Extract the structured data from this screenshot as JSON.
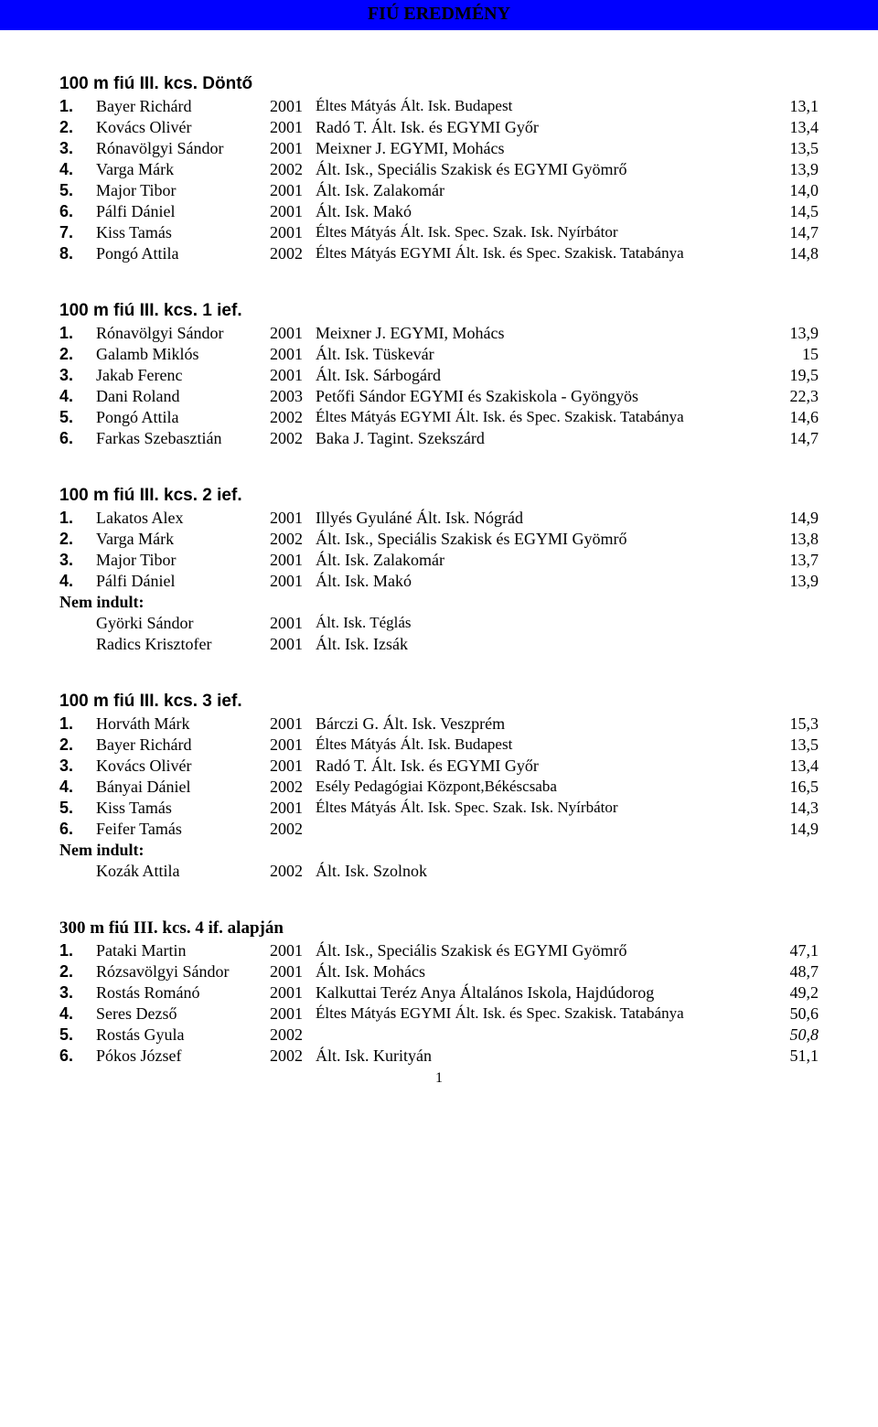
{
  "banner": "FIÚ EREDMÉNY",
  "pageNumber": "1",
  "sections": [
    {
      "title": "100 m fiú III. kcs.  Döntő",
      "rows": [
        {
          "rank": "1.",
          "name": "Bayer Richárd",
          "year": "2001",
          "inst": "Éltes Mátyás Ált. Isk. Budapest",
          "result": "13,1"
        },
        {
          "rank": "2.",
          "name": "Kovács Olivér",
          "year": "2001",
          "inst": "Radó T. Ált. Isk. és EGYMI Győr",
          "result": "13,4"
        },
        {
          "rank": "3.",
          "name": "Rónavölgyi Sándor",
          "year": "2001",
          "inst": "Meixner J. EGYMI, Mohács",
          "result": "13,5"
        },
        {
          "rank": "4.",
          "name": "Varga Márk",
          "year": "2002",
          "inst": "Ált. Isk., Speciális Szakisk és EGYMI Gyömrő",
          "result": "13,9"
        },
        {
          "rank": "5.",
          "name": "Major Tibor",
          "year": "2001",
          "inst": "Ált. Isk. Zalakomár",
          "result": "14,0"
        },
        {
          "rank": "6.",
          "name": "Pálfi Dániel",
          "year": "2001",
          "inst": "Ált. Isk. Makó",
          "result": "14,5"
        },
        {
          "rank": "7.",
          "name": "Kiss Tamás",
          "year": "2001",
          "inst": "Éltes Mátyás Ált. Isk. Spec. Szak. Isk. Nyírbátor",
          "result": "14,7"
        },
        {
          "rank": "8.",
          "name": "Pongó Attila",
          "year": "2002",
          "inst": "Éltes Mátyás EGYMI Ált. Isk. és Spec. Szakisk. Tatabánya",
          "result": "14,8"
        }
      ]
    },
    {
      "title": "100 m fiú  III. kcs. 1 ief.",
      "rows": [
        {
          "rank": "1.",
          "name": "Rónavölgyi Sándor",
          "year": "2001",
          "inst": "Meixner J. EGYMI, Mohács",
          "result": "13,9"
        },
        {
          "rank": "2.",
          "name": "Galamb Miklós",
          "year": "2001",
          "inst": "Ált. Isk. Tüskevár",
          "result": "15"
        },
        {
          "rank": "3.",
          "name": "Jakab Ferenc",
          "year": "2001",
          "inst": "Ált. Isk. Sárbogárd",
          "result": "19,5"
        },
        {
          "rank": "4.",
          "name": "Dani Roland",
          "year": "2003",
          "inst": "Petőfi Sándor EGYMI és Szakiskola - Gyöngyös",
          "result": "22,3"
        },
        {
          "rank": "5.",
          "name": "Pongó Attila",
          "year": "2002",
          "inst": "Éltes Mátyás EGYMI Ált. Isk. és Spec. Szakisk. Tatabánya",
          "result": "14,6"
        },
        {
          "rank": "6.",
          "name": "Farkas Szebasztián",
          "year": "2002",
          "inst": "Baka J. Tagint. Szekszárd",
          "result": "14,7"
        }
      ]
    },
    {
      "title": "100 m fiú III. kcs. 2 ief.",
      "rows": [
        {
          "rank": "1.",
          "name": "Lakatos Alex",
          "year": "2001",
          "inst": "Illyés Gyuláné Ált. Isk. Nógrád",
          "result": "14,9"
        },
        {
          "rank": "2.",
          "name": "Varga Márk",
          "year": "2002",
          "inst": "Ált. Isk., Speciális Szakisk és EGYMI Gyömrő",
          "result": "13,8"
        },
        {
          "rank": "3.",
          "name": "Major Tibor",
          "year": "2001",
          "inst": "Ált. Isk. Zalakomár",
          "result": "13,7"
        },
        {
          "rank": "4.",
          "name": "Pálfi Dániel",
          "year": "2001",
          "inst": "Ált. Isk. Makó",
          "result": "13,9"
        }
      ],
      "notStartedLabel": "Nem indult:",
      "notStarted": [
        {
          "name": "Györki Sándor",
          "year": "2001",
          "inst": "Ált. Isk. Téglás"
        },
        {
          "name": "Radics Krisztofer",
          "year": "2001",
          "inst": "Ált. Isk. Izsák"
        }
      ]
    },
    {
      "title": "100 m fiú III. kcs. 3 ief.",
      "rows": [
        {
          "rank": "1.",
          "name": "Horváth Márk",
          "year": "2001",
          "inst": "Bárczi G. Ált. Isk. Veszprém",
          "result": "15,3"
        },
        {
          "rank": "2.",
          "name": "Bayer Richárd",
          "year": "2001",
          "inst": "Éltes Mátyás Ált. Isk. Budapest",
          "result": "13,5"
        },
        {
          "rank": "3.",
          "name": "Kovács Olivér",
          "year": "2001",
          "inst": "Radó T. Ált. Isk. és EGYMI Győr",
          "result": "13,4"
        },
        {
          "rank": "4.",
          "name": "Bányai Dániel",
          "year": "2002",
          "inst": "Esély Pedagógiai Központ,Békéscsaba",
          "result": "16,5"
        },
        {
          "rank": "5.",
          "name": "Kiss Tamás",
          "year": "2001",
          "inst": "Éltes Mátyás Ált. Isk. Spec. Szak. Isk. Nyírbátor",
          "result": "14,3"
        },
        {
          "rank": "6.",
          "name": "Feifer Tamás",
          "year": "2002",
          "inst": "",
          "result": "14,9"
        }
      ],
      "notStartedLabel": "Nem indult:",
      "notStarted": [
        {
          "name": "Kozák Attila",
          "year": "2002",
          "inst": "Ált. Isk. Szolnok"
        }
      ]
    },
    {
      "title": "300 m fiú III. kcs.  4 if. alapján",
      "rows": [
        {
          "rank": "1.",
          "name": "Pataki Martin",
          "year": "2001",
          "inst": "Ált. Isk., Speciális Szakisk és EGYMI Gyömrő",
          "result": "47,1"
        },
        {
          "rank": "2.",
          "name": "Rózsavölgyi Sándor",
          "year": "2001",
          "inst": "Ált. Isk. Mohács",
          "result": "48,7"
        },
        {
          "rank": "3.",
          "name": "Rostás Románó",
          "year": "2001",
          "inst": "Kalkuttai Teréz Anya Általános Iskola, Hajdúdorog",
          "result": "49,2"
        },
        {
          "rank": "4.",
          "name": "Seres Dezső",
          "year": "2001",
          "inst": "Éltes Mátyás EGYMI Ált. Isk. és Spec. Szakisk. Tatabánya",
          "result": "50,6"
        },
        {
          "rank": "5.",
          "name": "Rostás Gyula",
          "year": "2002",
          "inst": "",
          "result": "50,8",
          "italic": true
        },
        {
          "rank": "6.",
          "name": "Pókos József",
          "year": "2002",
          "inst": "Ált. Isk. Kurityán",
          "result": "51,1"
        }
      ]
    }
  ]
}
